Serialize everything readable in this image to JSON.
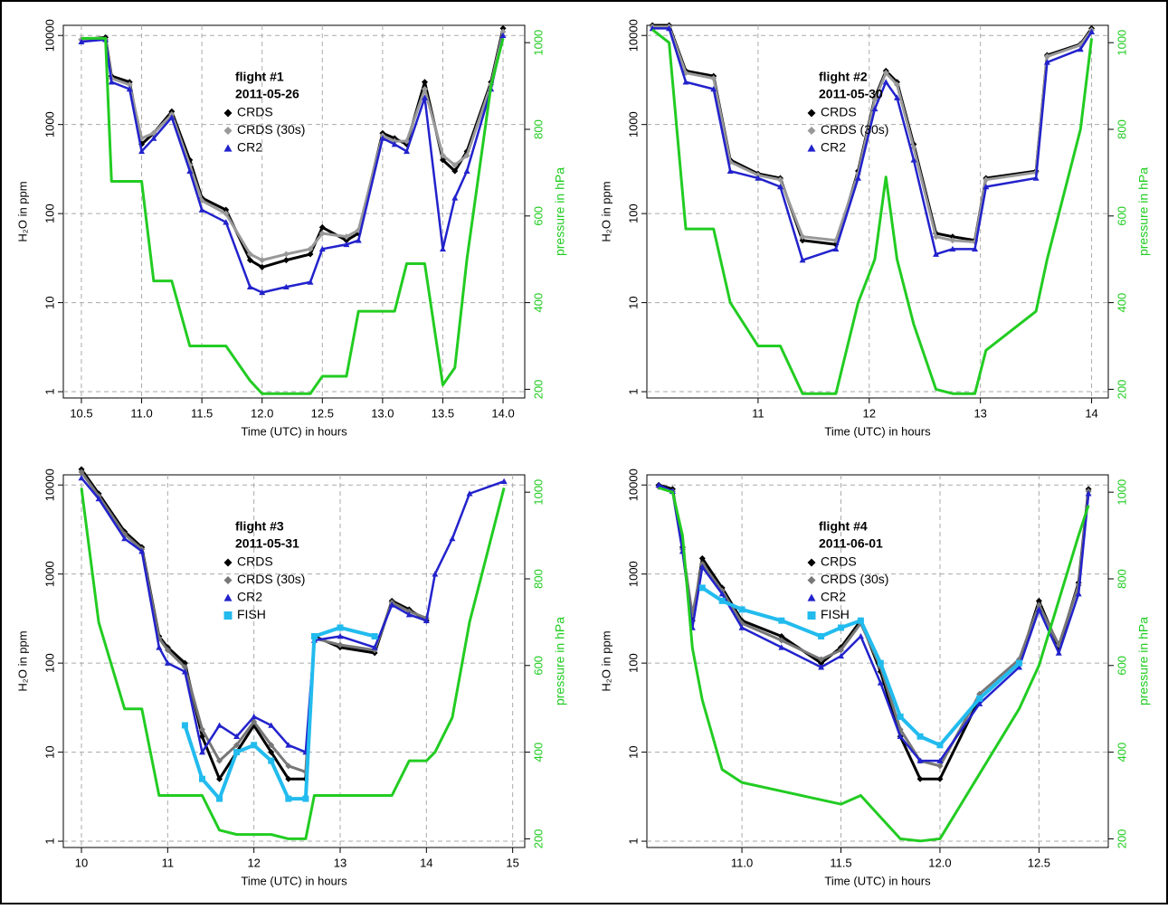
{
  "chart_data": [
    {
      "type": "line",
      "title": "flight #1",
      "subtitle": "2011-05-26",
      "x_label": "Time (UTC) in hours",
      "y_label": "H₂O in ppm",
      "y2_label": "pressure in hPa",
      "log_y": true,
      "grid": true,
      "xlim": [
        10.35,
        14.18
      ],
      "xticks": [
        10.5,
        {
          "value": 11,
          "label": "11.0"
        },
        11.5,
        {
          "value": 12,
          "label": "12.0"
        },
        12.5,
        {
          "value": 13,
          "label": "13.0"
        },
        13.5,
        {
          "value": 14,
          "label": "14.0"
        }
      ],
      "ylim": [
        0.85,
        13000
      ],
      "yticks": [
        1,
        10,
        100,
        1000,
        10000
      ],
      "y2lim": [
        180,
        1040
      ],
      "y2ticks": [
        200,
        400,
        600,
        800,
        1000
      ],
      "x": [
        10.5,
        10.7,
        10.75,
        10.9,
        11.0,
        11.1,
        11.25,
        11.4,
        11.5,
        11.7,
        11.9,
        12.0,
        12.2,
        12.4,
        12.5,
        12.7,
        12.8,
        13.0,
        13.1,
        13.2,
        13.35,
        13.5,
        13.6,
        13.7,
        13.9,
        14.0
      ],
      "series": [
        {
          "name": "CRDS",
          "color": "#000000",
          "marker": "diamond",
          "values": [
            9000,
            9500,
            3500,
            3000,
            600,
            800,
            1400,
            400,
            150,
            110,
            30,
            25,
            30,
            35,
            70,
            50,
            60,
            800,
            700,
            600,
            3000,
            400,
            300,
            500,
            3000,
            12000
          ]
        },
        {
          "name": "CRDS (30s)",
          "color": "#999999",
          "marker": "diamond",
          "values": [
            9000,
            9000,
            3300,
            2800,
            700,
            800,
            1300,
            350,
            140,
            100,
            35,
            30,
            35,
            40,
            60,
            55,
            65,
            750,
            650,
            650,
            2500,
            450,
            350,
            450,
            2800,
            11000
          ]
        },
        {
          "name": "CR2",
          "color": "#2222cc",
          "marker": "triangle",
          "values": [
            8500,
            9000,
            3000,
            2500,
            500,
            700,
            1200,
            300,
            110,
            80,
            15,
            13,
            15,
            17,
            40,
            45,
            50,
            700,
            600,
            500,
            2000,
            40,
            150,
            300,
            2500,
            10000
          ]
        }
      ],
      "pressure": {
        "color": "#22cc22",
        "axis": "y2",
        "values": [
          1010,
          1010,
          680,
          680,
          680,
          450,
          450,
          300,
          300,
          300,
          220,
          190,
          190,
          190,
          230,
          230,
          380,
          380,
          380,
          490,
          490,
          210,
          250,
          500,
          900,
          1010
        ]
      }
    },
    {
      "type": "line",
      "title": "flight #2",
      "subtitle": "2011-05-30",
      "x_label": "Time (UTC) in hours",
      "y_label": "H₂O in ppm",
      "y2_label": "pressure in hPa",
      "log_y": true,
      "grid": true,
      "xlim": [
        10,
        14.15
      ],
      "xticks": [
        11,
        12,
        13,
        14
      ],
      "ylim": [
        0.85,
        13000
      ],
      "yticks": [
        1,
        10,
        100,
        1000,
        10000
      ],
      "y2lim": [
        180,
        1040
      ],
      "y2ticks": [
        200,
        400,
        600,
        800,
        1000
      ],
      "x": [
        10.05,
        10.2,
        10.35,
        10.6,
        10.75,
        11.0,
        11.2,
        11.4,
        11.7,
        11.9,
        12.05,
        12.15,
        12.25,
        12.4,
        12.6,
        12.75,
        12.95,
        13.05,
        13.5,
        13.6,
        13.9,
        14.0
      ],
      "series": [
        {
          "name": "CRDS",
          "color": "#000000",
          "marker": "diamond",
          "values": [
            13000,
            13000,
            4000,
            3500,
            400,
            280,
            250,
            50,
            45,
            300,
            2000,
            4000,
            3000,
            600,
            60,
            55,
            50,
            250,
            300,
            6000,
            8000,
            12000
          ]
        },
        {
          "name": "CRDS (30s)",
          "color": "#999999",
          "marker": "diamond",
          "values": [
            12500,
            12500,
            3800,
            3300,
            380,
            270,
            240,
            55,
            50,
            280,
            1900,
            3800,
            2800,
            550,
            55,
            50,
            48,
            240,
            290,
            5800,
            7800,
            11500
          ]
        },
        {
          "name": "CR2",
          "color": "#2222cc",
          "marker": "triangle",
          "values": [
            12000,
            12000,
            3000,
            2500,
            300,
            250,
            200,
            30,
            40,
            250,
            1500,
            3000,
            2000,
            400,
            35,
            40,
            40,
            200,
            250,
            5000,
            7000,
            11000
          ]
        }
      ],
      "pressure": {
        "color": "#22cc22",
        "axis": "y2",
        "values": [
          1030,
          1000,
          570,
          570,
          400,
          300,
          300,
          190,
          190,
          400,
          500,
          690,
          500,
          350,
          200,
          190,
          190,
          290,
          380,
          500,
          800,
          1010
        ]
      }
    },
    {
      "type": "line",
      "title": "flight #3",
      "subtitle": "2011-05-31",
      "x_label": "Time (UTC) in hours",
      "y_label": "H₂O in ppm",
      "y2_label": "pressure in hPa",
      "log_y": true,
      "grid": true,
      "xlim": [
        9.79,
        15.14
      ],
      "xticks": [
        10,
        11,
        12,
        13,
        14,
        15
      ],
      "ylim": [
        0.85,
        13000
      ],
      "yticks": [
        1,
        10,
        100,
        1000,
        10000
      ],
      "y2lim": [
        180,
        1040
      ],
      "y2ticks": [
        200,
        400,
        600,
        800,
        1000
      ],
      "x": [
        10.0,
        10.2,
        10.5,
        10.7,
        10.9,
        11.0,
        11.2,
        11.4,
        11.6,
        11.8,
        12.0,
        12.2,
        12.4,
        12.6,
        12.7,
        13.0,
        13.4,
        13.6,
        13.8,
        14.0,
        14.1,
        14.3,
        14.5,
        14.9
      ],
      "series": [
        {
          "name": "CRDS",
          "color": "#000000",
          "marker": "diamond",
          "values": [
            15000,
            8000,
            3000,
            2000,
            200,
            150,
            100,
            15,
            5,
            10,
            20,
            10,
            5,
            5,
            200,
            150,
            130,
            500,
            400,
            300,
            null,
            null,
            null,
            null
          ]
        },
        {
          "name": "CRDS (30s)",
          "color": "#777777",
          "marker": "diamond",
          "values": [
            14000,
            7500,
            2800,
            1900,
            190,
            140,
            90,
            18,
            8,
            12,
            22,
            12,
            7,
            6,
            190,
            160,
            140,
            480,
            380,
            320,
            null,
            null,
            null,
            null
          ]
        },
        {
          "name": "CR2",
          "color": "#2222cc",
          "marker": "triangle",
          "values": [
            12000,
            7000,
            2500,
            1800,
            150,
            100,
            80,
            10,
            20,
            15,
            25,
            20,
            12,
            10,
            180,
            200,
            150,
            450,
            350,
            300,
            1000,
            2500,
            8000,
            11000
          ]
        },
        {
          "name": "FISH",
          "color": "#22bbee",
          "marker": "square",
          "values": [
            null,
            null,
            null,
            null,
            null,
            null,
            20,
            5,
            3,
            10,
            12,
            8,
            3,
            3,
            200,
            250,
            200,
            null,
            null,
            null,
            null,
            null,
            null,
            null
          ]
        }
      ],
      "pressure": {
        "color": "#22cc22",
        "axis": "y2",
        "values": [
          1010,
          700,
          500,
          500,
          300,
          300,
          300,
          300,
          220,
          210,
          210,
          210,
          200,
          200,
          300,
          300,
          300,
          300,
          380,
          380,
          400,
          480,
          700,
          1010
        ]
      }
    },
    {
      "type": "line",
      "title": "flight #4",
      "subtitle": "2011-06-01",
      "x_label": "Time (UTC) in hours",
      "y_label": "H₂O in ppm",
      "y2_label": "pressure in hPa",
      "log_y": true,
      "grid": true,
      "xlim": [
        10.52,
        12.85
      ],
      "xticks": [
        {
          "value": 11,
          "label": "11.0"
        },
        11.5,
        {
          "value": 12,
          "label": "12.0"
        },
        12.5
      ],
      "ylim": [
        0.85,
        13000
      ],
      "yticks": [
        1,
        10,
        100,
        1000,
        10000
      ],
      "y2lim": [
        180,
        1040
      ],
      "y2ticks": [
        200,
        400,
        600,
        800,
        1000
      ],
      "x": [
        10.58,
        10.65,
        10.7,
        10.75,
        10.8,
        10.9,
        11.0,
        11.2,
        11.4,
        11.5,
        11.6,
        11.7,
        11.8,
        11.9,
        12.0,
        12.2,
        12.4,
        12.5,
        12.6,
        12.7,
        12.75
      ],
      "series": [
        {
          "name": "CRDS",
          "color": "#000000",
          "marker": "diamond",
          "values": [
            10000,
            9000,
            2000,
            300,
            1500,
            700,
            300,
            200,
            100,
            150,
            300,
            80,
            15,
            5,
            5,
            40,
            100,
            500,
            150,
            800,
            9000
          ]
        },
        {
          "name": "CRDS (30s)",
          "color": "#777777",
          "marker": "diamond",
          "values": [
            9500,
            8500,
            1900,
            350,
            1300,
            650,
            280,
            180,
            110,
            140,
            280,
            90,
            18,
            8,
            7,
            45,
            110,
            450,
            160,
            750,
            8500
          ]
        },
        {
          "name": "CR2",
          "color": "#2222cc",
          "marker": "triangle",
          "values": [
            10000,
            8500,
            1800,
            250,
            1200,
            600,
            250,
            150,
            90,
            120,
            200,
            60,
            15,
            8,
            8,
            35,
            90,
            400,
            130,
            600,
            8000
          ]
        },
        {
          "name": "FISH",
          "color": "#22bbee",
          "marker": "square",
          "values": [
            null,
            null,
            null,
            null,
            700,
            500,
            400,
            300,
            200,
            250,
            300,
            100,
            25,
            15,
            12,
            40,
            100,
            null,
            null,
            null,
            null
          ]
        }
      ],
      "pressure": {
        "color": "#22cc22",
        "axis": "y2",
        "values": [
          1010,
          1000,
          900,
          640,
          520,
          360,
          330,
          310,
          290,
          280,
          300,
          250,
          200,
          195,
          200,
          350,
          500,
          600,
          750,
          900,
          970
        ]
      }
    }
  ]
}
